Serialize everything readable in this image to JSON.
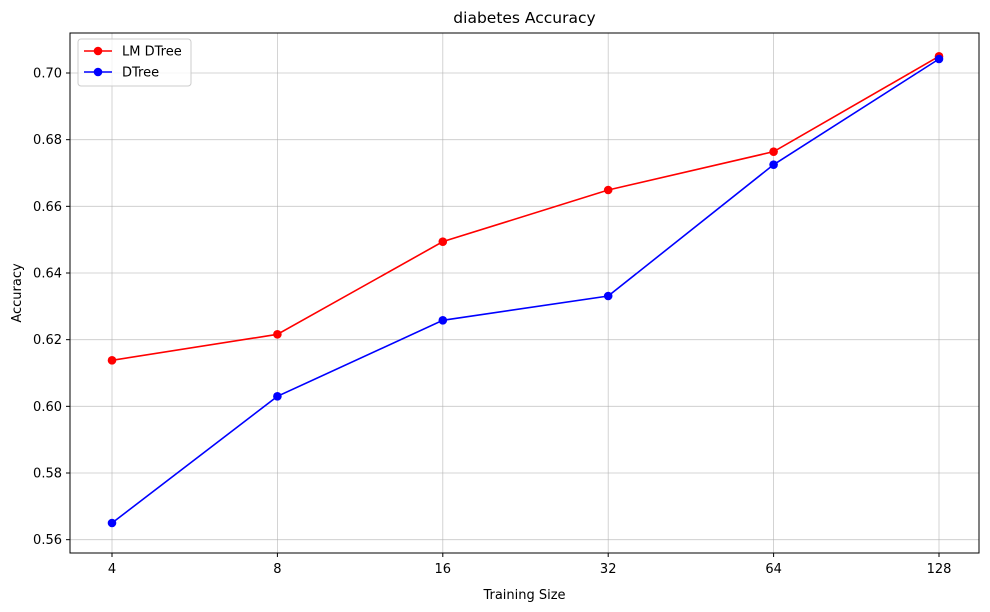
{
  "chart_data": {
    "type": "line",
    "title": "diabetes Accuracy",
    "xlabel": "Training Size",
    "ylabel": "Accuracy",
    "categories": [
      "4",
      "8",
      "16",
      "32",
      "64",
      "128"
    ],
    "ylim": [
      0.556,
      0.712
    ],
    "yticks": [
      "0.56",
      "0.58",
      "0.60",
      "0.62",
      "0.64",
      "0.66",
      "0.68",
      "0.70"
    ],
    "grid": true,
    "legend_position": "top-left",
    "series": [
      {
        "name": "LM DTree",
        "color": "#ff0000",
        "marker": "circle",
        "values": [
          0.6138,
          0.6216,
          0.6494,
          0.6649,
          0.6764,
          0.705
        ]
      },
      {
        "name": "DTree",
        "color": "#0000ff",
        "marker": "circle",
        "values": [
          0.565,
          0.603,
          0.6258,
          0.6331,
          0.6725,
          0.7042
        ]
      }
    ]
  }
}
